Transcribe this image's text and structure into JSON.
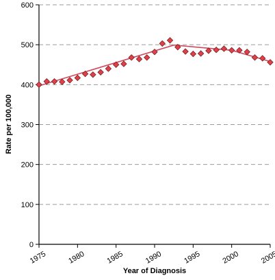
{
  "chart_data": {
    "type": "scatter",
    "title": "",
    "xlabel": "Year of Diagnosis",
    "ylabel": "Rate per 100,000",
    "xlim": [
      1975,
      2005
    ],
    "ylim": [
      0,
      600
    ],
    "x_ticks": [
      1975,
      1980,
      1985,
      1990,
      1995,
      2000,
      2005
    ],
    "y_ticks": [
      0,
      100,
      200,
      300,
      400,
      500,
      600
    ],
    "grid": "horizontal dashed",
    "legend": "none",
    "series": [
      {
        "type": "scatter",
        "x": [
          1975,
          1976,
          1977,
          1978,
          1979,
          1980,
          1981,
          1982,
          1983,
          1984,
          1985,
          1986,
          1987,
          1988,
          1989,
          1990,
          1991,
          1992,
          1993,
          1994,
          1995,
          1996,
          1997,
          1998,
          1999,
          2000,
          2001,
          2002,
          2003,
          2004,
          2005
        ],
        "y": [
          400,
          408,
          408,
          407,
          411,
          417,
          427,
          425,
          431,
          440,
          450,
          452,
          468,
          464,
          468,
          482,
          503,
          511,
          494,
          483,
          477,
          478,
          485,
          487,
          490,
          486,
          486,
          482,
          468,
          466,
          456
        ]
      },
      {
        "type": "line",
        "x": [
          1975,
          1992.5,
          2000,
          2005
        ],
        "y": [
          397,
          499,
          486,
          458
        ]
      }
    ],
    "colors": {
      "marker_fill": "#e0404a",
      "marker_stroke": "#6a1a1a",
      "trend_line": "#d04a5e",
      "gridline": "#9a9a9a",
      "axis": "#000000"
    }
  }
}
